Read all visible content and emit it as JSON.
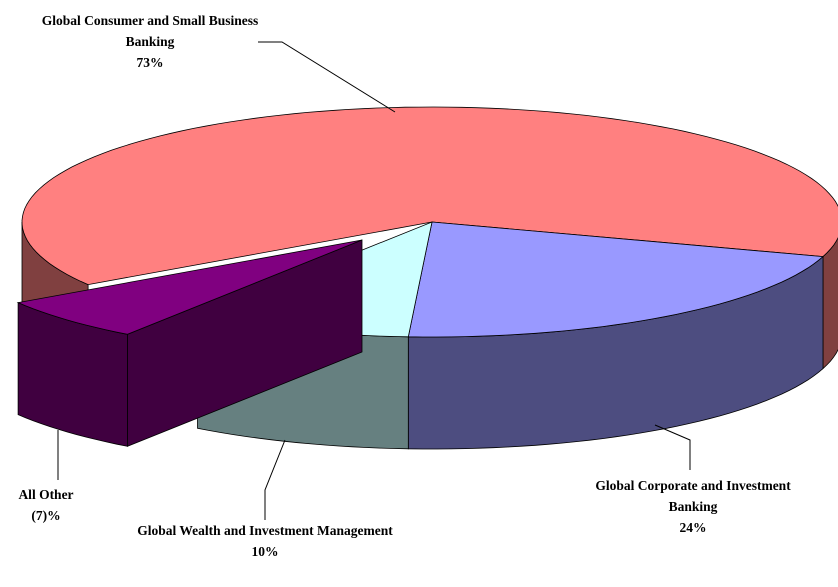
{
  "chart_data": {
    "type": "pie",
    "categories": [
      "Global Consumer and Small Business Banking",
      "Global Corporate and Investment Banking",
      "Global Wealth and Investment Management",
      "All Other"
    ],
    "values": [
      73,
      24,
      10,
      -7
    ],
    "value_labels": [
      "73%",
      "24%",
      "10%",
      "(7)%"
    ],
    "colors": [
      "#ff8080",
      "#9999ff",
      "#ccffff",
      "#800080"
    ],
    "explode": [
      0,
      0,
      0,
      1
    ]
  }
}
